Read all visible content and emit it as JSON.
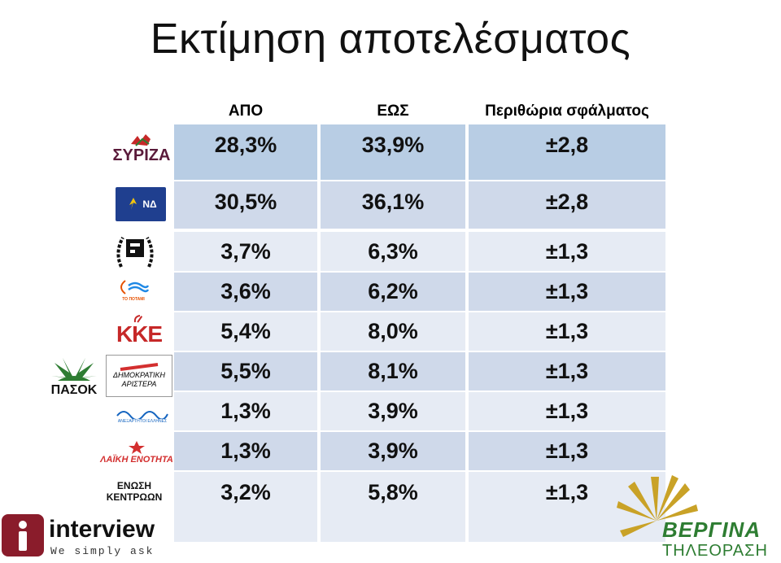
{
  "title": "Εκτίμηση αποτελέσματος",
  "columns": [
    "ΑΠΟ",
    "ΕΩΣ",
    "Περιθώρια σφάλματος"
  ],
  "rows": [
    {
      "party_logo": "syriza-logo",
      "logo_text": "ΣΥΡΙΖΑ",
      "from": "28,3%",
      "to": "33,9%",
      "margin": "±2,8",
      "bg": "#b8cde4"
    },
    {
      "party_logo": "nd-logo",
      "logo_text": "ΝΔ",
      "from": "30,5%",
      "to": "36,1%",
      "margin": "±2,8",
      "bg": "#cfd9ea"
    },
    {
      "party_logo": "golden-dawn-logo",
      "logo_text": "",
      "from": "3,7%",
      "to": "6,3%",
      "margin": "±1,3",
      "bg": "#e6ebf4"
    },
    {
      "party_logo": "potami-logo",
      "logo_text": "ΤΟ ΠΟΤΑΜΙ",
      "from": "3,6%",
      "to": "6,2%",
      "margin": "±1,3",
      "bg": "#cfd9ea"
    },
    {
      "party_logo": "kke-logo",
      "logo_text": "ΚΚΕ",
      "from": "5,4%",
      "to": "8,0%",
      "margin": "±1,3",
      "bg": "#e6ebf4"
    },
    {
      "party_logo": "pasok-dimar-logo",
      "logo_text": "ΠΑΣΟΚ",
      "logo_text2": "ΔΗΜΟΚΡΑΤΙΚΗ ΑΡΙΣΤΕΡΑ",
      "from": "5,5%",
      "to": "8,1%",
      "margin": "±1,3",
      "bg": "#cfd9ea"
    },
    {
      "party_logo": "anel-logo",
      "logo_text": "ΑΝΕΞΑΡΤΗΤΟΙ ΕΛΛΗΝΕΣ",
      "from": "1,3%",
      "to": "3,9%",
      "margin": "±1,3",
      "bg": "#e6ebf4"
    },
    {
      "party_logo": "laiki-enotita-logo",
      "logo_text": "ΛΑΪΚΗ ΕΝΟΤΗΤΑ",
      "from": "1,3%",
      "to": "3,9%",
      "margin": "±1,3",
      "bg": "#cfd9ea"
    },
    {
      "party_logo": "enosi-kentroon-logo",
      "logo_text": "ΕΝΩΣΗ ΚΕΝΤΡΩΩΝ",
      "from": "3,2%",
      "to": "5,8%",
      "margin": "±1,3",
      "bg": "#e6ebf4"
    }
  ],
  "footer_left": {
    "brand": "interview",
    "tagline": "We simply ask"
  },
  "footer_right": {
    "brand": "ΒΕΡΓΙΝΑ",
    "sub": "ΤΗΛΕΟΡΑΣΗ"
  },
  "colors": {
    "header_row": "#b8cde4",
    "mid_row": "#cfd9ea",
    "light_row": "#e6ebf4",
    "interview_maroon": "#8a1c2b",
    "vergina_gold": "#c9a227",
    "vergina_green": "#2e7d32"
  }
}
